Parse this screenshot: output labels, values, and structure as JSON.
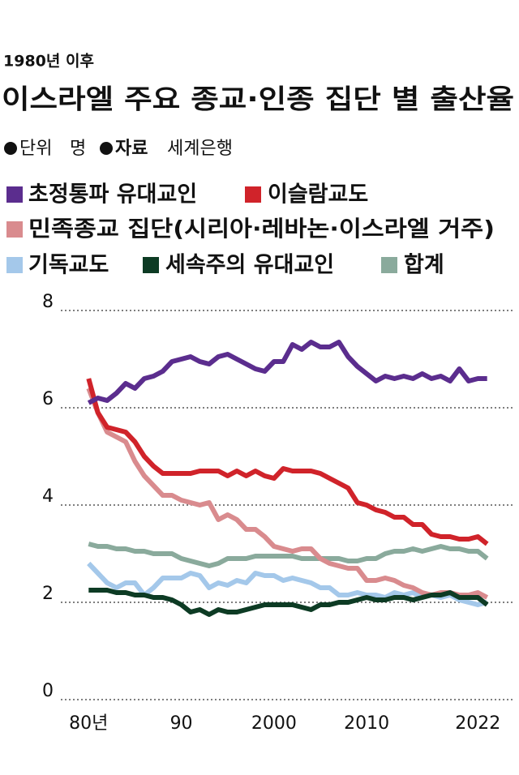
{
  "chart_data": {
    "type": "line",
    "subtitle": "1980년 이후",
    "title": "이스라엘 주요 종교·인종 집단 별 출산율",
    "unit_label": "단위",
    "unit": "명",
    "source_label": "자료",
    "source": "세계은행",
    "x": [
      1980,
      1981,
      1982,
      1983,
      1984,
      1985,
      1986,
      1987,
      1988,
      1989,
      1990,
      1991,
      1992,
      1993,
      1994,
      1995,
      1996,
      1997,
      1998,
      1999,
      2000,
      2001,
      2002,
      2003,
      2004,
      2005,
      2006,
      2007,
      2008,
      2009,
      2010,
      2011,
      2012,
      2013,
      2014,
      2015,
      2016,
      2017,
      2018,
      2019,
      2020,
      2021,
      2022,
      2023
    ],
    "xlim": [
      1977,
      2026
    ],
    "xticks": [
      {
        "value": 1980,
        "label": "80년"
      },
      {
        "value": 1990,
        "label": "90"
      },
      2000,
      2010,
      2022
    ],
    "ylim": [
      0,
      8
    ],
    "yticks": [
      0,
      2,
      4,
      6,
      8
    ],
    "grid": true,
    "series": [
      {
        "name": "초정통파 유대교인",
        "color": "#5b2d8e",
        "values": [
          6.1,
          6.2,
          6.15,
          6.3,
          6.5,
          6.4,
          6.6,
          6.65,
          6.75,
          6.95,
          7.0,
          7.05,
          6.95,
          6.9,
          7.05,
          7.1,
          7.0,
          6.9,
          6.8,
          6.75,
          6.95,
          6.95,
          7.3,
          7.2,
          7.35,
          7.25,
          7.25,
          7.35,
          7.05,
          6.85,
          6.7,
          6.55,
          6.65,
          6.6,
          6.65,
          6.6,
          6.7,
          6.6,
          6.65,
          6.55,
          6.8,
          6.55,
          6.6,
          6.6
        ]
      },
      {
        "name": "이슬람교도",
        "color": "#d0232a",
        "values": [
          6.6,
          5.9,
          5.6,
          5.55,
          5.5,
          5.3,
          5.0,
          4.8,
          4.65,
          4.65,
          4.65,
          4.65,
          4.7,
          4.7,
          4.7,
          4.6,
          4.7,
          4.6,
          4.7,
          4.6,
          4.55,
          4.75,
          4.7,
          4.7,
          4.7,
          4.65,
          4.55,
          4.45,
          4.35,
          4.05,
          4.0,
          3.9,
          3.85,
          3.75,
          3.75,
          3.6,
          3.6,
          3.4,
          3.35,
          3.35,
          3.3,
          3.3,
          3.35,
          3.2
        ]
      },
      {
        "name": "민족종교 집단(시리아·레바논·이스라엘 거주)",
        "color": "#d98b8e",
        "values": [
          6.4,
          5.9,
          5.5,
          5.4,
          5.3,
          4.9,
          4.6,
          4.4,
          4.2,
          4.2,
          4.1,
          4.05,
          4.0,
          4.05,
          3.7,
          3.8,
          3.7,
          3.5,
          3.5,
          3.35,
          3.15,
          3.1,
          3.05,
          3.1,
          3.1,
          2.9,
          2.8,
          2.75,
          2.7,
          2.7,
          2.45,
          2.45,
          2.5,
          2.45,
          2.35,
          2.3,
          2.2,
          2.15,
          2.2,
          2.2,
          2.15,
          2.15,
          2.2,
          2.1
        ]
      },
      {
        "name": "기독교도",
        "color": "#a4c8ea",
        "values": [
          2.8,
          2.6,
          2.4,
          2.3,
          2.4,
          2.4,
          2.15,
          2.3,
          2.5,
          2.5,
          2.5,
          2.6,
          2.55,
          2.3,
          2.4,
          2.35,
          2.45,
          2.4,
          2.6,
          2.55,
          2.55,
          2.45,
          2.5,
          2.45,
          2.4,
          2.3,
          2.3,
          2.15,
          2.15,
          2.2,
          2.15,
          2.15,
          2.1,
          2.2,
          2.15,
          2.2,
          2.1,
          2.15,
          2.1,
          2.15,
          2.05,
          2.0,
          1.95,
          2.0
        ]
      },
      {
        "name": "세속주의 유대교인",
        "color": "#0d3b24",
        "values": [
          2.25,
          2.25,
          2.25,
          2.2,
          2.2,
          2.15,
          2.15,
          2.1,
          2.1,
          2.05,
          1.95,
          1.8,
          1.85,
          1.75,
          1.85,
          1.8,
          1.8,
          1.85,
          1.9,
          1.95,
          1.95,
          1.95,
          1.95,
          1.9,
          1.85,
          1.95,
          1.95,
          2.0,
          2.0,
          2.05,
          2.1,
          2.05,
          2.05,
          2.1,
          2.1,
          2.05,
          2.1,
          2.15,
          2.15,
          2.2,
          2.1,
          2.1,
          2.1,
          1.95
        ]
      },
      {
        "name": "합계",
        "color": "#8aaa9c",
        "values": [
          3.2,
          3.15,
          3.15,
          3.1,
          3.1,
          3.05,
          3.05,
          3.0,
          3.0,
          3.0,
          2.9,
          2.85,
          2.8,
          2.75,
          2.8,
          2.9,
          2.9,
          2.9,
          2.95,
          2.95,
          2.95,
          2.95,
          2.95,
          2.9,
          2.9,
          2.9,
          2.9,
          2.9,
          2.85,
          2.85,
          2.9,
          2.9,
          3.0,
          3.05,
          3.05,
          3.1,
          3.05,
          3.1,
          3.15,
          3.1,
          3.1,
          3.05,
          3.05,
          2.9
        ]
      }
    ]
  }
}
